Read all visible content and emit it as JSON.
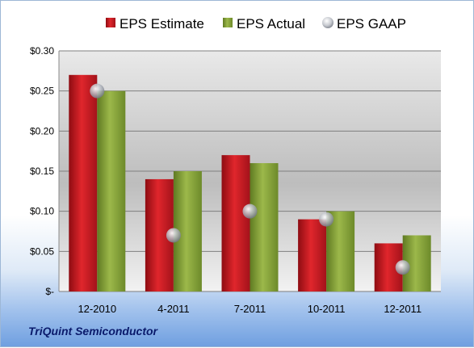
{
  "company": "TriQuint Semiconductor",
  "colors": {
    "estimate": "#c8141c",
    "actual": "#8aa33a",
    "gaap": "#b8bcc4"
  },
  "chart_data": {
    "type": "bar",
    "categories": [
      "12-2010",
      "4-2011",
      "7-2011",
      "10-2011",
      "12-2011"
    ],
    "series": [
      {
        "name": "EPS Estimate",
        "type": "bar",
        "values": [
          0.27,
          0.14,
          0.17,
          0.09,
          0.06
        ]
      },
      {
        "name": "EPS Actual",
        "type": "bar",
        "values": [
          0.25,
          0.15,
          0.16,
          0.1,
          0.07
        ]
      },
      {
        "name": "EPS GAAP",
        "type": "scatter",
        "values": [
          0.25,
          0.07,
          0.1,
          0.09,
          0.03
        ]
      }
    ],
    "ylim": [
      0,
      0.3
    ],
    "yticks": [
      0,
      0.05,
      0.1,
      0.15,
      0.2,
      0.25,
      0.3
    ],
    "ytick_labels": [
      "$-",
      "$0.05",
      "$0.10",
      "$0.15",
      "$0.20",
      "$0.25",
      "$0.30"
    ],
    "grid": true,
    "legend": "top"
  }
}
